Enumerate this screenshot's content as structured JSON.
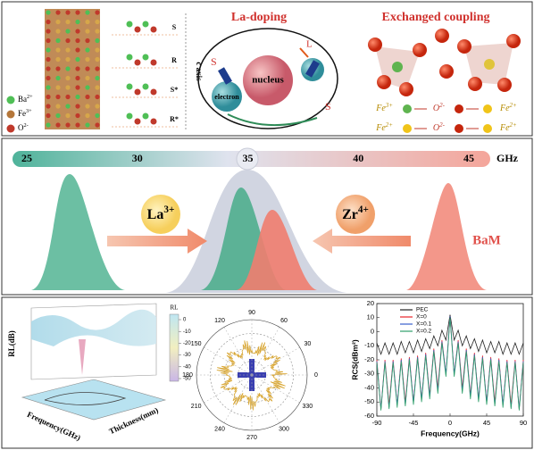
{
  "top": {
    "legend": [
      {
        "base": "Ba",
        "sup": "2+"
      },
      {
        "base": "Fe",
        "sup": "3+"
      },
      {
        "base": "O",
        "sup": "2-"
      }
    ],
    "blocks": [
      "S",
      "R",
      "S*",
      "R*"
    ],
    "axis_label": "c axis"
  },
  "la_doping": {
    "title": "La-doping",
    "electron": "electron",
    "nucleus": "nucleus",
    "orbital": "L",
    "spin_left": "S",
    "spin_right": "S"
  },
  "exchange": {
    "title": "Exchanged coupling",
    "rows": [
      [
        {
          "base": "Fe",
          "sup": "3+"
        },
        {
          "base": "O",
          "sup": "2-"
        },
        {
          "base": "Fe",
          "sup": "2+"
        }
      ],
      [
        {
          "base": "Fe",
          "sup": "2+"
        },
        {
          "base": "O",
          "sup": "2-"
        },
        {
          "base": "Fe",
          "sup": "2+"
        }
      ]
    ]
  },
  "middle": {
    "scale_ticks": [
      25,
      30,
      35,
      40,
      45
    ],
    "scale_unit": "GHz",
    "ions": [
      {
        "base": "La",
        "sup": "3+"
      },
      {
        "base": "Zr",
        "sup": "4+"
      }
    ],
    "host": "BaM"
  },
  "surface": {
    "z_label": "RL(dB)",
    "colorbar_title": "RL",
    "colorbar_ticks": [
      0,
      -10,
      -20,
      -30,
      -40,
      -50
    ],
    "x_label": "Frequency(GHz)",
    "y_label": "Thickness(mm)"
  },
  "polar": {
    "angles": [
      90,
      60,
      30,
      0,
      330,
      300,
      270,
      240,
      210,
      180,
      150,
      120
    ]
  },
  "chart_data": {
    "type": "line",
    "y_label": "RCS(dBm²)",
    "x_label": "Frequency(GHz)",
    "xlim": [
      -90,
      90
    ],
    "xticks": [
      -90,
      -45,
      0,
      45,
      90
    ],
    "ylim": [
      -60,
      20
    ],
    "yticks": [
      -60,
      -50,
      -40,
      -30,
      -20,
      -10,
      0,
      10,
      20
    ],
    "x": [
      -90,
      -85,
      -80,
      -75,
      -70,
      -65,
      -60,
      -55,
      -50,
      -45,
      -40,
      -35,
      -30,
      -25,
      -20,
      -15,
      -10,
      -5,
      0,
      5,
      10,
      15,
      20,
      25,
      30,
      35,
      40,
      45,
      50,
      55,
      60,
      65,
      70,
      75,
      80,
      85,
      90
    ],
    "series": [
      {
        "name": "PEC",
        "color": "#222222",
        "values": [
          -8,
          -16,
          -8,
          -16,
          -8,
          -16,
          -7,
          -15,
          -7,
          -15,
          -6,
          -14,
          -5,
          -12,
          -3,
          -10,
          1,
          -6,
          12,
          -6,
          1,
          -10,
          -3,
          -12,
          -5,
          -14,
          -6,
          -15,
          -7,
          -15,
          -7,
          -16,
          -8,
          -16,
          -8,
          -16,
          -8
        ]
      },
      {
        "name": "X=0",
        "color": "#e8262a",
        "values": [
          -20,
          -55,
          -20,
          -52,
          -20,
          -52,
          -19,
          -50,
          -18,
          -50,
          -17,
          -48,
          -15,
          -45,
          -12,
          -40,
          -6,
          -30,
          11,
          -30,
          -6,
          -40,
          -12,
          -45,
          -15,
          -48,
          -17,
          -50,
          -18,
          -50,
          -19,
          -52,
          -20,
          -52,
          -20,
          -55,
          -20
        ]
      },
      {
        "name": "X=0.1",
        "color": "#3a5fcd",
        "values": [
          -21,
          -55,
          -21,
          -54,
          -21,
          -52,
          -20,
          -52,
          -19,
          -50,
          -18,
          -48,
          -16,
          -46,
          -13,
          -42,
          -7,
          -30,
          11,
          -30,
          -7,
          -42,
          -13,
          -46,
          -16,
          -48,
          -18,
          -50,
          -19,
          -52,
          -20,
          -52,
          -21,
          -54,
          -21,
          -55,
          -21
        ]
      },
      {
        "name": "X=0.2",
        "color": "#2e9e6a",
        "values": [
          -22,
          -56,
          -22,
          -55,
          -22,
          -54,
          -21,
          -53,
          -20,
          -52,
          -19,
          -50,
          -17,
          -48,
          -14,
          -44,
          -8,
          -32,
          10,
          -32,
          -8,
          -44,
          -14,
          -48,
          -17,
          -50,
          -19,
          -52,
          -20,
          -53,
          -21,
          -54,
          -22,
          -55,
          -22,
          -56,
          -22
        ]
      }
    ]
  }
}
